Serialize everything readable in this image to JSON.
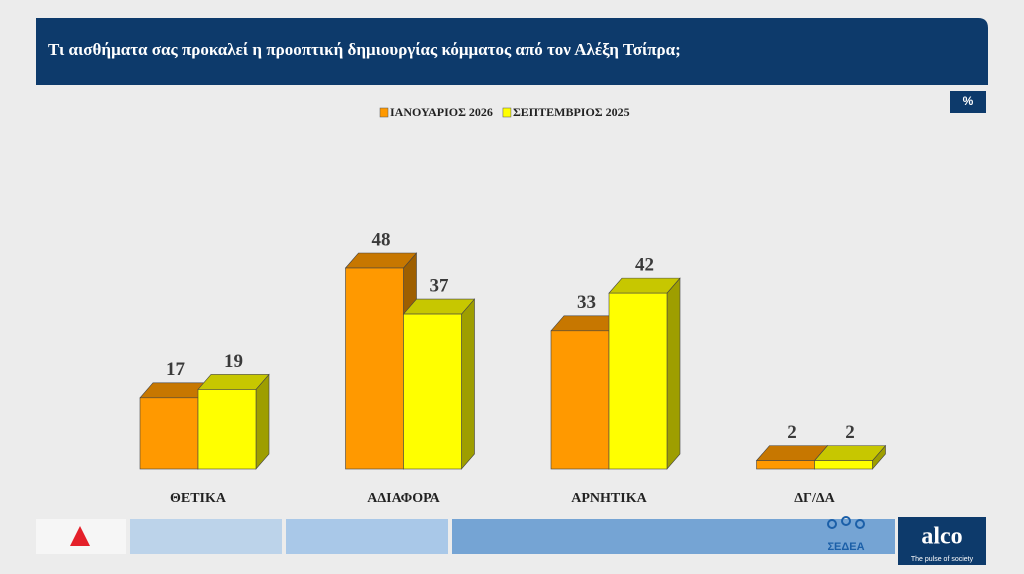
{
  "chart_data": {
    "type": "bar3d",
    "title": "Τι αισθήματα σας προκαλεί η προοπτική δημιουργίας κόμματος από τον Αλέξη Τσίπρα;",
    "unit_label": "%",
    "categories": [
      "ΘΕΤΙΚΑ",
      "ΑΔΙΑΦΟΡΑ",
      "ΑΡΝΗΤΙΚΑ",
      "ΔΓ/ΔΑ"
    ],
    "series": [
      {
        "name": "ΙΑΝΟΥΑΡΙΟΣ 2026",
        "color": "#ff9900",
        "values": [
          17,
          48,
          33,
          2
        ]
      },
      {
        "name": "ΣΕΠΤΕΜΒΡΙΟΣ 2025",
        "color": "#ffff00",
        "values": [
          19,
          37,
          42,
          2
        ]
      }
    ]
  },
  "footer": {
    "sedea": "ΣΕΔΕΑ",
    "alco": "alco",
    "alco_tagline": "The pulse of society"
  }
}
